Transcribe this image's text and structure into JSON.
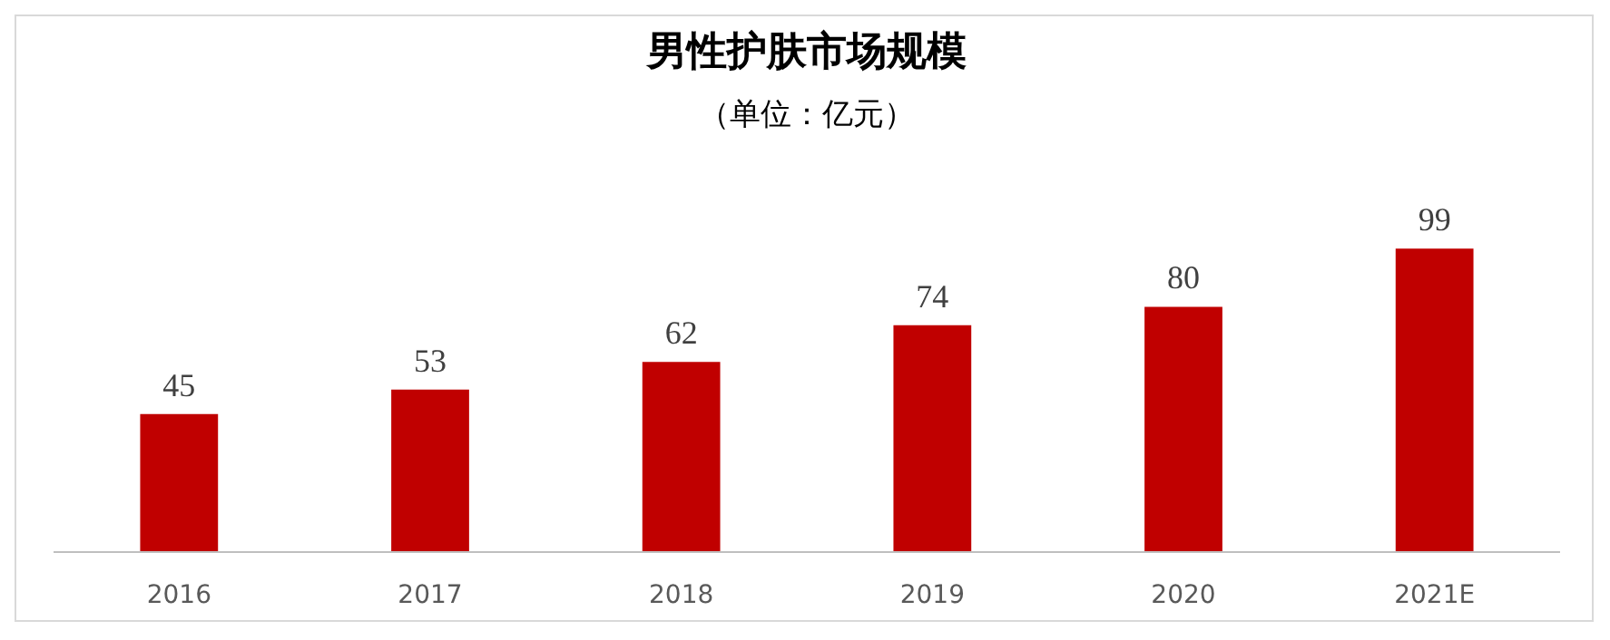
{
  "chart_data": {
    "type": "bar",
    "title": "男性护肤市场规模",
    "subtitle": "（单位：亿元）",
    "categories": [
      "2016",
      "2017",
      "2018",
      "2019",
      "2020",
      "2021E"
    ],
    "values": [
      45,
      53,
      62,
      74,
      80,
      99
    ],
    "color": "#c00000",
    "data_labels": true,
    "grid": false
  }
}
